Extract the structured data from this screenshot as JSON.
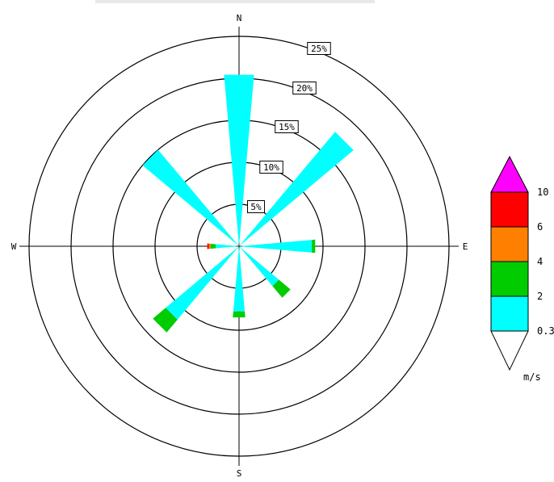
{
  "chart_data": {
    "type": "wind-rose",
    "compass": {
      "north": "N",
      "south": "S",
      "east": "E",
      "west": "W"
    },
    "rings": [
      {
        "value": 5,
        "label": "5%"
      },
      {
        "value": 10,
        "label": "10%"
      },
      {
        "value": 15,
        "label": "15%"
      },
      {
        "value": 20,
        "label": "20%"
      },
      {
        "value": 25,
        "label": "25%"
      }
    ],
    "speed_bins": [
      {
        "range": "0.3-2",
        "color": "#00ffff"
      },
      {
        "range": "2-4",
        "color": "#00cc00"
      },
      {
        "range": "4-6",
        "color": "#ff8000"
      },
      {
        "range": "6-10",
        "color": "#ff0000"
      },
      {
        "range": ">10",
        "color": "#ff00ff"
      }
    ],
    "sectors": [
      {
        "direction": 0,
        "values": [
          20.5,
          0,
          0,
          0,
          0
        ]
      },
      {
        "direction": 45,
        "values": [
          17.8,
          0,
          0,
          0,
          0
        ]
      },
      {
        "direction": 90,
        "values": [
          8.7,
          0.4,
          0,
          0,
          0
        ]
      },
      {
        "direction": 135,
        "values": [
          6.2,
          1.8,
          0,
          0,
          0
        ]
      },
      {
        "direction": 180,
        "values": [
          7.8,
          0.7,
          0,
          0,
          0
        ]
      },
      {
        "direction": 225,
        "values": [
          11.4,
          2.0,
          0,
          0,
          0
        ]
      },
      {
        "direction": 270,
        "values": [
          2.8,
          0.6,
          0.2,
          0.2,
          0
        ]
      },
      {
        "direction": 315,
        "values": [
          15.0,
          0,
          0,
          0,
          0
        ]
      }
    ],
    "legend": {
      "ticks": [
        "0.3",
        "2",
        "4",
        "6",
        "10"
      ],
      "unit": "m/s",
      "colors": [
        "#00ffff",
        "#00cc00",
        "#ff8000",
        "#ff0000",
        "#ff00ff"
      ]
    }
  }
}
